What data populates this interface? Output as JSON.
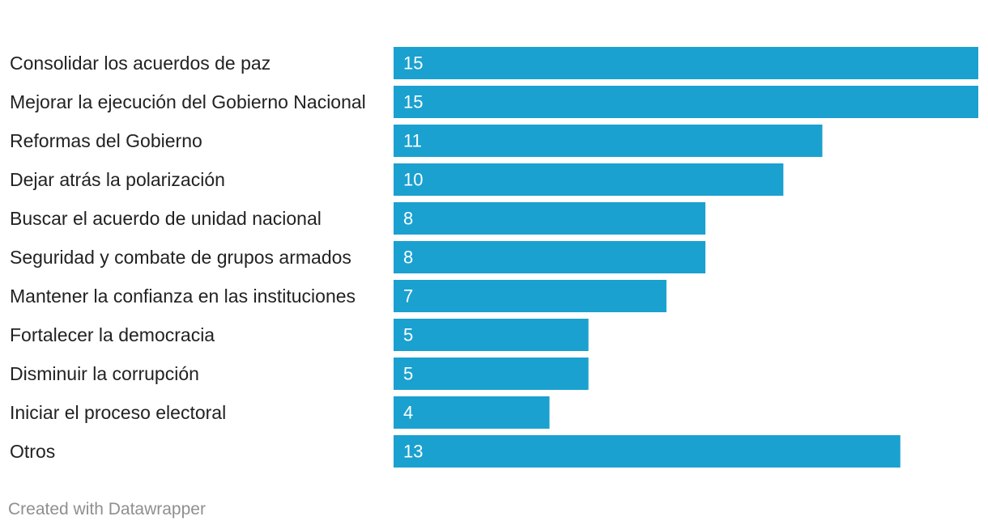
{
  "chart_data": {
    "type": "bar",
    "orientation": "horizontal",
    "title": "",
    "xlabel": "",
    "ylabel": "",
    "categories": [
      "Consolidar los acuerdos de paz",
      "Mejorar la ejecución del Gobierno Nacional",
      "Reformas del Gobierno",
      "Dejar atrás la polarización",
      "Buscar el acuerdo de unidad nacional",
      "Seguridad y combate de grupos armados",
      "Mantener la confianza en las instituciones",
      "Fortalecer la democracia",
      "Disminuir la corrupción",
      "Iniciar el proceso electoral",
      "Otros"
    ],
    "values": [
      15,
      15,
      11,
      10,
      8,
      8,
      7,
      5,
      5,
      4,
      13
    ],
    "xlim": [
      0,
      15
    ],
    "grid": false,
    "legend": "none",
    "bar_color": "#1aa1cf",
    "value_label_color": "#ffffff"
  },
  "footer": {
    "credit": "Created with Datawrapper"
  }
}
